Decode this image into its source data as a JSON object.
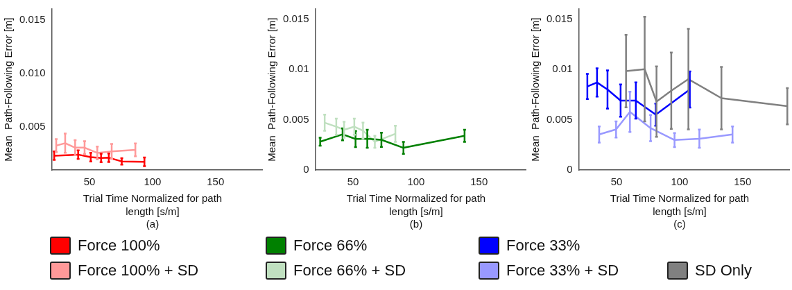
{
  "chart_data": [
    {
      "type": "line",
      "xlabel": "Trial Time Normalized for path length [s/m]",
      "ylabel": "Mean  Path-Following Error [m]",
      "annotations": [
        "(a)"
      ],
      "xlim": [
        20,
        187
      ],
      "xticks": [
        50,
        100,
        150
      ],
      "ylim": [
        0.001,
        0.016
      ],
      "yticks": [
        0.005,
        {
          "value": 0.01,
          "label": "0.010"
        },
        0.015
      ],
      "grid": false,
      "legend": "bottom",
      "marker": "none",
      "line_style": "solid",
      "series": [
        {
          "name": "Force 100%",
          "color": "#ff0000",
          "x": [
            22,
            41,
            51,
            59.2,
            65.3,
            75.6,
            93.6
          ],
          "values": [
            0.00233,
            0.00243,
            0.0022,
            0.00212,
            0.00214,
            0.0018,
            0.00176
          ],
          "errors": [
            0.0004,
            0.0004,
            0.0004,
            0.0004,
            0.0004,
            0.0003,
            0.0004
          ]
        },
        {
          "name": "Force 100% + SD",
          "color": "#ff9999",
          "x": [
            23.6,
            30.7,
            38.6,
            46.1,
            56.2,
            67.6,
            86.4
          ],
          "values": [
            0.00327,
            0.0035,
            0.00308,
            0.00308,
            0.00259,
            0.00273,
            0.00288
          ],
          "errors": [
            0.0006,
            0.0009,
            0.0007,
            0.0006,
            0.0006,
            0.0007,
            0.0006
          ]
        }
      ]
    },
    {
      "type": "line",
      "xlabel": "Trial Time Normalized for path length [s/m]",
      "ylabel": "Mean  Path-Following Error [m]",
      "annotations": [
        "(b)"
      ],
      "xlim": [
        20,
        187
      ],
      "xticks": [
        50,
        100,
        150
      ],
      "ylim": [
        0,
        0.016
      ],
      "yticks": [
        0,
        0.005,
        0.01,
        0.015
      ],
      "grid": false,
      "legend": "bottom",
      "marker": "none",
      "line_style": "solid",
      "series": [
        {
          "name": "Force 66%",
          "color": "#008000",
          "x": [
            23.9,
            41.7,
            52,
            61.3,
            72.5,
            90,
            138.5
          ],
          "values": [
            0.00281,
            0.00354,
            0.00308,
            0.0031,
            0.003,
            0.0022,
            0.0034
          ],
          "errors": [
            0.0004,
            0.0006,
            0.0008,
            0.0009,
            0.0007,
            0.0006,
            0.0006
          ]
        },
        {
          "name": "Force 66% + SD",
          "color": "#c0e0c0",
          "x": [
            27.5,
            36.7,
            42.9,
            51,
            57.9,
            67.3,
            83.6
          ],
          "values": [
            0.0047,
            0.0043,
            0.004,
            0.0043,
            0.0039,
            0.0028,
            0.0036
          ],
          "errors": [
            0.0008,
            0.0008,
            0.0008,
            0.0008,
            0.0008,
            0.0006,
            0.0008
          ]
        }
      ]
    },
    {
      "type": "line",
      "xlabel": "Trial Time Normalized for path length [s/m]",
      "ylabel": "Mean  Path-Following Error [m]",
      "annotations": [
        "(c)"
      ],
      "xlim": [
        20,
        187
      ],
      "xticks": [
        50,
        100,
        150
      ],
      "ylim": [
        0,
        0.016
      ],
      "yticks": [
        0,
        0.005,
        0.01,
        0.015
      ],
      "grid": false,
      "legend": "bottom",
      "marker": "none",
      "line_style": "solid",
      "series": [
        {
          "name": "Force 33%",
          "color": "#0000ff",
          "x": [
            26.8,
            34.5,
            42.8,
            53.2,
            65.3,
            81.1,
            108.1
          ],
          "values": [
            0.0083,
            0.0087,
            0.008,
            0.0069,
            0.0069,
            0.0055,
            0.008
          ],
          "errors": [
            0.00125,
            0.0014,
            0.0019,
            0.0016,
            0.0018,
            0.0011,
            0.0018
          ]
        },
        {
          "name": "Force 33% + SD",
          "color": "#9999ff",
          "x": [
            36.2,
            49.6,
            60.6,
            77,
            96,
            115.7,
            142
          ],
          "values": [
            0.00353,
            0.00403,
            0.00578,
            0.00416,
            0.00298,
            0.00311,
            0.00353
          ],
          "errors": [
            0.0008,
            0.0008,
            0.002,
            0.0013,
            0.0007,
            0.0009,
            0.0008
          ]
        },
        {
          "name": "SD Only",
          "color": "#808080",
          "x": [
            57.5,
            72.3,
            81.7,
            93.4,
            107,
            133.2,
            185.5
          ],
          "values": [
            0.00983,
            0.01002,
            0.00679,
            0.00788,
            0.00903,
            0.00714,
            0.00634
          ],
          "errors": [
            0.0036,
            0.0052,
            0.0035,
            0.0038,
            0.005,
            0.0031,
            0.0018
          ]
        }
      ]
    }
  ]
}
